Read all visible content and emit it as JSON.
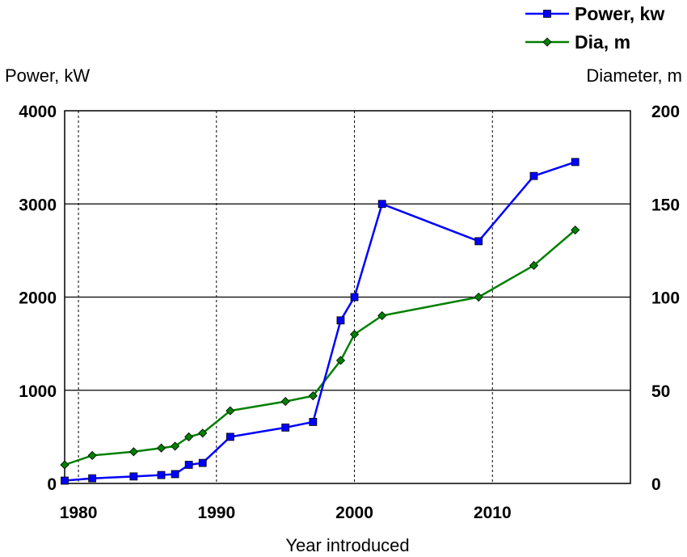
{
  "chart_data": {
    "type": "line",
    "xlabel": "Year introduced",
    "ylabel_left": "Power, kW",
    "ylabel_right": "Diameter, m",
    "xlim": [
      1979,
      2020
    ],
    "ylim_left": [
      0,
      4000
    ],
    "ylim_right": [
      0,
      200
    ],
    "x_ticks": [
      1980,
      1990,
      2000,
      2010
    ],
    "y_ticks_left": [
      0,
      1000,
      2000,
      3000,
      4000
    ],
    "y_ticks_right": [
      0,
      50,
      100,
      150,
      200
    ],
    "grid": {
      "horizontal": "solid",
      "vertical": "dashed"
    },
    "legend_position": "top-right",
    "series": [
      {
        "name": "Power, kw",
        "axis": "left",
        "color": "#0000ff",
        "marker": "square",
        "points": [
          [
            1979,
            30
          ],
          [
            1981,
            55
          ],
          [
            1984,
            75
          ],
          [
            1986,
            90
          ],
          [
            1987,
            100
          ],
          [
            1988,
            200
          ],
          [
            1989,
            220
          ],
          [
            1991,
            500
          ],
          [
            1995,
            600
          ],
          [
            1997,
            660
          ],
          [
            1999,
            1750
          ],
          [
            2000,
            2000
          ],
          [
            2002,
            3000
          ],
          [
            2009,
            2600
          ],
          [
            2013,
            3300
          ],
          [
            2016,
            3450
          ]
        ]
      },
      {
        "name": "Dia, m",
        "axis": "right",
        "color": "#008000",
        "marker": "diamond",
        "points": [
          [
            1979,
            10
          ],
          [
            1981,
            15
          ],
          [
            1984,
            17
          ],
          [
            1986,
            19
          ],
          [
            1987,
            20
          ],
          [
            1988,
            25
          ],
          [
            1989,
            27
          ],
          [
            1991,
            39
          ],
          [
            1995,
            44
          ],
          [
            1997,
            47
          ],
          [
            1999,
            66
          ],
          [
            2000,
            80
          ],
          [
            2002,
            90
          ],
          [
            2009,
            100
          ],
          [
            2013,
            117
          ],
          [
            2016,
            136
          ]
        ]
      }
    ]
  }
}
